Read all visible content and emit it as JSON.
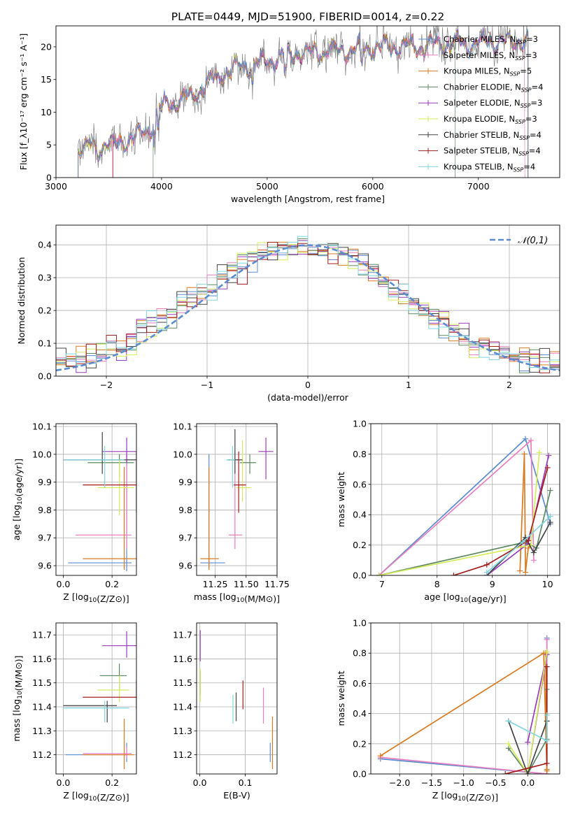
{
  "figure_title": "PLATE=0449, MJD=51900, FIBERID=0014, z=0.22",
  "chart_data": [
    {
      "id": "spectrum",
      "type": "line",
      "xlabel": "wavelength [Angstrom, rest frame]",
      "ylabel": "Flux [f_λ10⁻¹⁷ erg cm⁻² s⁻¹ A⁻¹]",
      "xlim": [
        3000,
        7770
      ],
      "ylim": [
        0,
        23.2
      ],
      "xticks": [
        3000,
        4000,
        5000,
        6000,
        7000
      ],
      "yticks": [
        0,
        5,
        10,
        15,
        20
      ],
      "grid": false,
      "legend_position": "right",
      "observed_continuum": {
        "x": [
          3210,
          3300,
          3400,
          3500,
          3600,
          3700,
          3800,
          3900,
          4000,
          4100,
          4200,
          4300,
          4400,
          4500,
          4600,
          4700,
          4800,
          4900,
          5000,
          5100,
          5200,
          5300,
          5400,
          5500,
          5600,
          5700,
          5800,
          5900,
          6000,
          6100,
          6200,
          6300,
          6400,
          6500,
          6600,
          6700,
          6800,
          6900,
          7000,
          7100,
          7200,
          7300,
          7400,
          7470
        ],
        "y": [
          4.5,
          4.6,
          4.8,
          5.0,
          5.3,
          6.0,
          6.5,
          8.0,
          11.0,
          11.5,
          12.0,
          12.5,
          14.0,
          15.0,
          16.0,
          16.8,
          17.0,
          17.5,
          18.0,
          18.3,
          18.8,
          19.0,
          19.0,
          19.3,
          19.5,
          19.5,
          19.6,
          19.8,
          19.8,
          20.0,
          20.0,
          20.0,
          20.0,
          20.0,
          20.5,
          20.5,
          20.5,
          20.5,
          20.5,
          20.8,
          20.8,
          20.8,
          21.0,
          21.0
        ]
      },
      "series": [
        {
          "name": "Chabrier MILES, N_SSP=3",
          "color": "#5b8bd0"
        },
        {
          "name": "Salpeter MILES, N_SSP=3",
          "color": "#e87fbf"
        },
        {
          "name": "Kroupa MILES, N_SSP=5",
          "color": "#d97a20"
        },
        {
          "name": "Chabrier ELODIE, N_SSP=4",
          "color": "#5d8a63"
        },
        {
          "name": "Salpeter ELODIE, N_SSP=3",
          "color": "#9a3bbd"
        },
        {
          "name": "Kroupa ELODIE, N_SSP=3",
          "color": "#d4ec5a"
        },
        {
          "name": "Chabrier STELIB, N_SSP=4",
          "color": "#444444"
        },
        {
          "name": "Salpeter STELIB, N_SSP=4",
          "color": "#a31d1d"
        },
        {
          "name": "Kroupa STELIB, N_SSP=4",
          "color": "#7fd6e0"
        }
      ]
    },
    {
      "id": "residuals",
      "type": "bar",
      "xlabel": "(data-model)/error",
      "ylabel": "Normed distribution",
      "xlim": [
        -2.5,
        2.5
      ],
      "ylim": [
        0,
        0.46
      ],
      "xticks": [
        -2,
        -1,
        0,
        1,
        2
      ],
      "yticks": [
        0.0,
        0.1,
        0.2,
        0.3,
        0.4
      ],
      "grid": true,
      "legend_position": "top-right",
      "legend_label": "𝒩(0,1)",
      "reference_curve": "normal pdf, mean 0, sd 1",
      "bin_width": 0.1,
      "envelope": [
        0.04,
        0.045,
        0.05,
        0.06,
        0.07,
        0.085,
        0.1,
        0.12,
        0.14,
        0.155,
        0.17,
        0.19,
        0.215,
        0.235,
        0.255,
        0.275,
        0.3,
        0.32,
        0.34,
        0.355,
        0.37,
        0.38,
        0.385,
        0.39,
        0.395,
        0.395,
        0.39,
        0.385,
        0.375,
        0.36,
        0.34,
        0.32,
        0.295,
        0.27,
        0.25,
        0.22,
        0.2,
        0.175,
        0.155,
        0.135,
        0.12,
        0.1,
        0.09,
        0.08,
        0.07,
        0.06,
        0.055,
        0.05,
        0.045,
        0.042
      ]
    },
    {
      "id": "age-vs-Z",
      "type": "scatter",
      "xlabel": "Z [log10(Z/Z⊙)]",
      "ylabel": "age  [log10(age/yr)]",
      "xlim": [
        -0.03,
        0.3
      ],
      "ylim": [
        9.565,
        10.11
      ],
      "xticks": [
        0.0,
        0.2
      ],
      "yticks": [
        9.6,
        9.7,
        9.8,
        9.9,
        10.0,
        10.1
      ],
      "grid": true,
      "points": [
        {
          "series": "Chabrier MILES, N_SSP=3",
          "x": 0.26,
          "y": 9.61,
          "xerr": [
            0.24,
            0.02
          ],
          "yerr": [
            0.03,
            0.39
          ]
        },
        {
          "series": "Salpeter MILES, N_SSP=3",
          "x": 0.26,
          "y": 9.71,
          "xerr": [
            0.21,
            0.02
          ],
          "yerr": [
            0.05,
            0.3
          ]
        },
        {
          "series": "Kroupa MILES, N_SSP=5",
          "x": 0.25,
          "y": 9.625,
          "xerr": [
            0.17,
            0.05
          ],
          "yerr": [
            0.04,
            0.33
          ]
        },
        {
          "series": "Chabrier ELODIE, N_SSP=4",
          "x": 0.23,
          "y": 9.97,
          "xerr": [
            0.13,
            0.06
          ],
          "yerr": [
            0.05,
            0.03
          ]
        },
        {
          "series": "Salpeter ELODIE, N_SSP=3",
          "x": 0.26,
          "y": 10.01,
          "xerr": [
            0.1,
            0.08
          ],
          "yerr": [
            0.04,
            0.05
          ]
        },
        {
          "series": "Kroupa ELODIE, N_SSP=3",
          "x": 0.23,
          "y": 9.88,
          "xerr": [
            0.09,
            0.06
          ],
          "yerr": [
            0.1,
            0.1
          ]
        },
        {
          "series": "Chabrier STELIB, N_SSP=4",
          "x": 0.16,
          "y": 9.98,
          "xerr": [
            0.16,
            0.14
          ],
          "yerr": [
            0.05,
            0.1
          ]
        },
        {
          "series": "Salpeter STELIB, N_SSP=4",
          "x": 0.3,
          "y": 9.89,
          "xerr": [
            0.22,
            0.03
          ],
          "yerr": [
            0.1,
            0.12
          ]
        },
        {
          "series": "Kroupa STELIB, N_SSP=4",
          "x": 0.17,
          "y": 9.98,
          "xerr": [
            0.17,
            0.08
          ],
          "yerr": [
            0.1,
            0.05
          ]
        }
      ]
    },
    {
      "id": "age-vs-mass",
      "type": "scatter",
      "xlabel": "mass [log10(M/M⊙)]",
      "ylabel": "",
      "xlim": [
        11.1,
        11.75
      ],
      "ylim": [
        9.565,
        10.11
      ],
      "xticks": [
        11.25,
        11.5,
        11.75
      ],
      "yticks": [
        9.6,
        9.7,
        9.8,
        9.9,
        10.0,
        10.1
      ],
      "grid": true,
      "points": [
        {
          "series": "Chabrier MILES, N_SSP=3",
          "x": 11.2,
          "y": 9.61,
          "xerr": [
            0.07,
            0.13
          ],
          "yerr": [
            0.02,
            0.39
          ]
        },
        {
          "series": "Salpeter MILES, N_SSP=3",
          "x": 11.41,
          "y": 9.71,
          "xerr": [
            0.05,
            0.06
          ],
          "yerr": [
            0.05,
            0.3
          ]
        },
        {
          "series": "Kroupa MILES, N_SSP=5",
          "x": 11.2,
          "y": 9.625,
          "xerr": [
            0.07,
            0.08
          ],
          "yerr": [
            0.04,
            0.33
          ]
        },
        {
          "series": "Chabrier ELODIE, N_SSP=4",
          "x": 11.53,
          "y": 9.97,
          "xerr": [
            0.08,
            0.05
          ],
          "yerr": [
            0.04,
            0.03
          ]
        },
        {
          "series": "Salpeter ELODIE, N_SSP=3",
          "x": 11.66,
          "y": 10.01,
          "xerr": [
            0.06,
            0.06
          ],
          "yerr": [
            0.1,
            0.05
          ]
        },
        {
          "series": "Kroupa ELODIE, N_SSP=3",
          "x": 11.47,
          "y": 9.88,
          "xerr": [
            0.05,
            0.07
          ],
          "yerr": [
            0.05,
            0.17
          ]
        },
        {
          "series": "Chabrier STELIB, N_SSP=4",
          "x": 11.41,
          "y": 9.98,
          "xerr": [
            0.06,
            0.06
          ],
          "yerr": [
            0.05,
            0.11
          ]
        },
        {
          "series": "Salpeter STELIB, N_SSP=4",
          "x": 11.44,
          "y": 9.89,
          "xerr": [
            0.04,
            0.06
          ],
          "yerr": [
            0.1,
            0.12
          ]
        },
        {
          "series": "Kroupa STELIB, N_SSP=4",
          "x": 11.39,
          "y": 9.98,
          "xerr": [
            0.05,
            0.02
          ],
          "yerr": [
            0.1,
            0.05
          ]
        }
      ]
    },
    {
      "id": "weight-vs-age",
      "type": "line",
      "xlabel": "age  [log10(age/yr)]",
      "ylabel": "mass weight",
      "xlim": [
        6.8,
        10.22
      ],
      "ylim": [
        0.0,
        1.0
      ],
      "xticks": [
        7,
        8,
        9,
        10
      ],
      "yticks": [
        0.0,
        0.2,
        0.4,
        0.6,
        0.8,
        1.0
      ],
      "grid": true,
      "series": [
        {
          "name": "Chabrier MILES, N_SSP=3",
          "x": [
            6.95,
            9.6,
            10.05
          ],
          "y": [
            0.0,
            0.9,
            0.34
          ]
        },
        {
          "name": "Salpeter MILES, N_SSP=3",
          "x": [
            6.95,
            9.7,
            9.75
          ],
          "y": [
            0.0,
            0.89,
            0.1
          ]
        },
        {
          "name": "Kroupa MILES, N_SSP=5",
          "x": [
            9.5,
            9.58,
            9.6,
            9.65,
            9.7
          ],
          "y": [
            0.03,
            0.8,
            0.02,
            0.18,
            0.2
          ]
        },
        {
          "name": "Chabrier ELODIE, N_SSP=4",
          "x": [
            6.95,
            9.6,
            9.8,
            10.05
          ],
          "y": [
            0.0,
            0.22,
            0.18,
            0.56
          ]
        },
        {
          "name": "Salpeter ELODIE, N_SSP=3",
          "x": [
            8.9,
            9.65,
            10.02
          ],
          "y": [
            0.0,
            0.21,
            0.79
          ]
        },
        {
          "name": "Kroupa ELODIE, N_SSP=3",
          "x": [
            6.95,
            9.7,
            9.85
          ],
          "y": [
            0.0,
            0.2,
            0.81
          ]
        },
        {
          "name": "Chabrier STELIB, N_SSP=4",
          "x": [
            8.9,
            9.6,
            9.75,
            10.05
          ],
          "y": [
            0.0,
            0.25,
            0.15,
            0.35
          ]
        },
        {
          "name": "Salpeter STELIB, N_SSP=4",
          "x": [
            8.3,
            8.9,
            9.65,
            10.0
          ],
          "y": [
            0.0,
            0.07,
            0.23,
            0.71
          ]
        },
        {
          "name": "Kroupa STELIB, N_SSP=4",
          "x": [
            8.9,
            9.55,
            10.05
          ],
          "y": [
            0.02,
            0.22,
            0.39
          ]
        }
      ]
    },
    {
      "id": "mass-vs-Z",
      "type": "scatter",
      "xlabel": "Z [log10(Z/Z⊙)]",
      "ylabel": "mass [log10(M/M⊙)]",
      "xlim": [
        -0.03,
        0.3
      ],
      "ylim": [
        11.12,
        11.75
      ],
      "xticks": [
        0.0,
        0.2
      ],
      "yticks": [
        11.2,
        11.3,
        11.4,
        11.5,
        11.6,
        11.7
      ],
      "grid": true,
      "points": [
        {
          "series": "Chabrier MILES, N_SSP=3",
          "x": 0.26,
          "y": 11.2,
          "xerr": [
            0.25,
            0.0
          ],
          "yerr": [
            0.03,
            0.05
          ]
        },
        {
          "series": "Salpeter MILES, N_SSP=3",
          "x": 0.26,
          "y": 11.205,
          "xerr": [
            0.18,
            0.02
          ],
          "yerr": [
            0.02,
            0.03
          ]
        },
        {
          "series": "Kroupa MILES, N_SSP=5",
          "x": 0.25,
          "y": 11.2,
          "xerr": [
            0.17,
            0.04
          ],
          "yerr": [
            0.06,
            0.15
          ]
        },
        {
          "series": "Chabrier ELODIE, N_SSP=4",
          "x": 0.23,
          "y": 11.53,
          "xerr": [
            0.08,
            0.03
          ],
          "yerr": [
            0.06,
            0.05
          ]
        },
        {
          "series": "Salpeter ELODIE, N_SSP=3",
          "x": 0.26,
          "y": 11.655,
          "xerr": [
            0.1,
            0.04
          ],
          "yerr": [
            0.05,
            0.06
          ]
        },
        {
          "series": "Kroupa ELODIE, N_SSP=3",
          "x": 0.23,
          "y": 11.47,
          "xerr": [
            0.09,
            0.04
          ],
          "yerr": [
            0.05,
            0.06
          ]
        },
        {
          "series": "Chabrier STELIB, N_SSP=4",
          "x": 0.18,
          "y": 11.405,
          "xerr": [
            0.18,
            0.04
          ],
          "yerr": [
            0.07,
            0.02
          ]
        },
        {
          "series": "Salpeter STELIB, N_SSP=4",
          "x": 0.3,
          "y": 11.44,
          "xerr": [
            0.22,
            0.0
          ],
          "yerr": [
            0.05,
            0.07
          ]
        },
        {
          "series": "Kroupa STELIB, N_SSP=4",
          "x": 0.17,
          "y": 11.395,
          "xerr": [
            0.17,
            0.1
          ],
          "yerr": [
            0.06,
            0.03
          ]
        }
      ]
    },
    {
      "id": "mass-vs-EBV",
      "type": "scatter",
      "xlabel": "E(B-V)",
      "ylabel": "",
      "xlim": [
        -0.007,
        0.17
      ],
      "ylim": [
        11.12,
        11.75
      ],
      "xticks": [
        0.0,
        0.1
      ],
      "yticks": [
        11.2,
        11.3,
        11.4,
        11.5,
        11.6,
        11.7
      ],
      "grid": true,
      "points": [
        {
          "series": "Chabrier MILES, N_SSP=3",
          "x": 0.155,
          "y": 11.2,
          "yerr": [
            0.03,
            0.05
          ]
        },
        {
          "series": "Salpeter MILES, N_SSP=3",
          "x": 0.14,
          "y": 11.4,
          "yerr": [
            0.07,
            0.08
          ]
        },
        {
          "series": "Kroupa MILES, N_SSP=5",
          "x": 0.16,
          "y": 11.25,
          "yerr": [
            0.11,
            0.11
          ]
        },
        {
          "series": "Chabrier ELODIE, N_SSP=4",
          "x": 0.001,
          "y": 11.5,
          "yerr": [
            0.05,
            0.05
          ]
        },
        {
          "series": "Salpeter ELODIE, N_SSP=3",
          "x": 0.001,
          "y": 11.65,
          "yerr": [
            0.06,
            0.07
          ]
        },
        {
          "series": "Kroupa ELODIE, N_SSP=3",
          "x": 0.001,
          "y": 11.48,
          "yerr": [
            0.06,
            0.08
          ]
        },
        {
          "series": "Chabrier STELIB, N_SSP=4",
          "x": 0.08,
          "y": 11.4,
          "yerr": [
            0.06,
            0.06
          ]
        },
        {
          "series": "Salpeter STELIB, N_SSP=4",
          "x": 0.095,
          "y": 11.45,
          "yerr": [
            0.06,
            0.06
          ]
        },
        {
          "series": "Kroupa STELIB, N_SSP=4",
          "x": 0.073,
          "y": 11.39,
          "yerr": [
            0.06,
            0.06
          ]
        }
      ]
    },
    {
      "id": "weight-vs-Z",
      "type": "line",
      "xlabel": "Z [log10(Z/Z⊙)]",
      "ylabel": "mass weight",
      "xlim": [
        -2.45,
        0.5
      ],
      "ylim": [
        0.0,
        1.0
      ],
      "xticks": [
        -2.0,
        -1.5,
        -1.0,
        -0.5,
        0.0
      ],
      "yticks": [
        0.0,
        0.2,
        0.4,
        0.6,
        0.8,
        1.0
      ],
      "grid": true,
      "series": [
        {
          "name": "Chabrier MILES, N_SSP=3",
          "x": [
            -2.3,
            0.3,
            0.3
          ],
          "y": [
            0.1,
            0.0,
            0.9
          ]
        },
        {
          "name": "Salpeter MILES, N_SSP=3",
          "x": [
            -2.3,
            0.3,
            0.3
          ],
          "y": [
            0.11,
            0.0,
            0.89
          ]
        },
        {
          "name": "Kroupa MILES, N_SSP=5",
          "x": [
            -2.3,
            0.25,
            0.3,
            0.3,
            0.28
          ],
          "y": [
            0.12,
            0.8,
            0.02,
            0.03,
            0.8
          ]
        },
        {
          "name": "Chabrier ELODIE, N_SSP=4",
          "x": [
            -0.3,
            0.0,
            0.3,
            0.3
          ],
          "y": [
            0.17,
            0.0,
            0.23,
            0.56
          ]
        },
        {
          "name": "Salpeter ELODIE, N_SSP=3",
          "x": [
            0.0,
            0.3,
            0.0
          ],
          "y": [
            0.21,
            0.79,
            0.0
          ]
        },
        {
          "name": "Kroupa ELODIE, N_SSP=3",
          "x": [
            -0.3,
            0.0,
            0.3
          ],
          "y": [
            0.2,
            0.0,
            0.81
          ]
        },
        {
          "name": "Chabrier STELIB, N_SSP=4",
          "x": [
            -0.3,
            0.0,
            0.3
          ],
          "y": [
            0.35,
            0.0,
            0.35
          ]
        },
        {
          "name": "Salpeter STELIB, N_SSP=4",
          "x": [
            -0.35,
            0.3,
            0.3
          ],
          "y": [
            0.0,
            0.07,
            0.71
          ]
        },
        {
          "name": "Kroupa STELIB, N_SSP=4",
          "x": [
            -0.3,
            0.3,
            0.3
          ],
          "y": [
            0.35,
            0.22,
            0.39
          ]
        }
      ]
    }
  ]
}
